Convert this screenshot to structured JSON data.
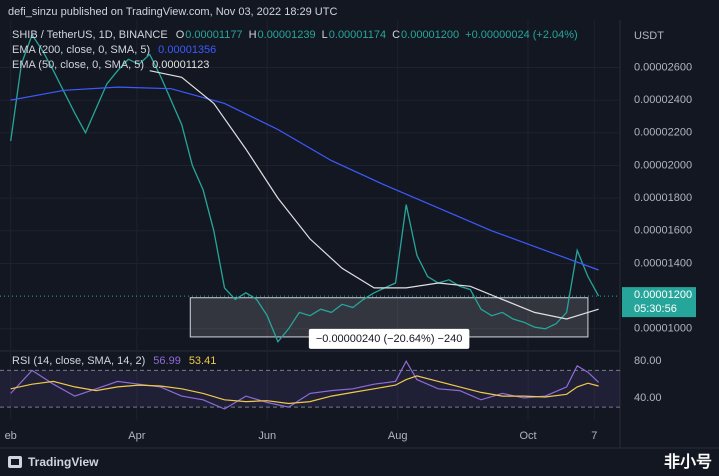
{
  "header": {
    "title": "defi_sinzu published on TradingView.com, Nov 03, 2022 18:29 UTC",
    "unit": "USDT"
  },
  "footer": {
    "brand": "TradingView",
    "watermark": "非小号"
  },
  "chart_data": [
    {
      "type": "line",
      "symbol": "SHIB / TetherUS, 1D, BINANCE",
      "ohlc": [
        {
          "label": "O",
          "value": "0.00001177"
        },
        {
          "label": "H",
          "value": "0.00001239"
        },
        {
          "label": "L",
          "value": "0.00001174"
        },
        {
          "label": "C",
          "value": "0.00001200"
        }
      ],
      "change": "+0.00000024 (+2.04%)",
      "x": [
        0,
        5,
        10,
        15,
        20,
        25,
        30,
        35,
        40,
        45,
        50,
        55,
        60,
        65,
        70,
        75,
        80,
        85,
        90,
        95,
        100,
        105,
        110,
        115,
        120,
        125,
        130,
        135,
        140,
        145,
        150,
        155,
        160,
        165,
        170,
        175,
        180,
        185,
        190,
        195,
        200,
        205,
        210,
        215,
        220,
        225,
        230,
        235,
        240,
        245,
        250,
        255,
        260,
        265,
        270,
        275
      ],
      "series": [
        {
          "name": "SHIB / TetherUS, 1D, BINANCE",
          "color": "#26a69a",
          "values": [
            2.15e-05,
            2.62e-05,
            2.8e-05,
            2.7e-05,
            2.58e-05,
            2.45e-05,
            2.32e-05,
            2.2e-05,
            2.35e-05,
            2.5e-05,
            2.58e-05,
            2.65e-05,
            2.62e-05,
            2.68e-05,
            2.55e-05,
            2.4e-05,
            2.25e-05,
            2e-05,
            1.85e-05,
            1.6e-05,
            1.25e-05,
            1.18e-05,
            1.22e-05,
            1.18e-05,
            1.08e-05,
            9.2e-06,
            1e-05,
            1.1e-05,
            1.08e-05,
            1.12e-05,
            1.1e-05,
            1.15e-05,
            1.13e-05,
            1.18e-05,
            1.22e-05,
            1.25e-05,
            1.28e-05,
            1.76e-05,
            1.45e-05,
            1.32e-05,
            1.28e-05,
            1.3e-05,
            1.26e-05,
            1.24e-05,
            1.12e-05,
            1.08e-05,
            1.1e-05,
            1.06e-05,
            1.04e-05,
            1.01e-05,
            1e-05,
            1.03e-05,
            1.1e-05,
            1.48e-05,
            1.32e-05,
            1.2e-05
          ]
        },
        {
          "name": "EMA (200, close, 0, SMA, 5)",
          "color": "#3d5afe",
          "legend_value": "0.00001356",
          "x": [
            0,
            25,
            50,
            75,
            100,
            125,
            150,
            175,
            200,
            225,
            250,
            275
          ],
          "values": [
            2.4e-05,
            2.46e-05,
            2.48e-05,
            2.47e-05,
            2.38e-05,
            2.22e-05,
            2.03e-05,
            1.88e-05,
            1.74e-05,
            1.6e-05,
            1.48e-05,
            1.36e-05
          ]
        },
        {
          "name": "EMA (50, close, 0, SMA, 5)",
          "color": "#e0e0e0",
          "legend_value": "0.00001123",
          "x": [
            65,
            80,
            95,
            110,
            125,
            140,
            155,
            170,
            185,
            200,
            215,
            230,
            245,
            260,
            275
          ],
          "values": [
            2.58e-05,
            2.54e-05,
            2.38e-05,
            2.1e-05,
            1.8e-05,
            1.55e-05,
            1.37e-05,
            1.25e-05,
            1.25e-05,
            1.28e-05,
            1.26e-05,
            1.18e-05,
            1.1e-05,
            1.06e-05,
            1.12e-05
          ]
        }
      ],
      "xlim": [
        -5,
        285
      ],
      "xticks": [
        {
          "value": 0,
          "label": "eb"
        },
        {
          "value": 59,
          "label": "Apr"
        },
        {
          "value": 120,
          "label": "Jun"
        },
        {
          "value": 181,
          "label": "Aug"
        },
        {
          "value": 242,
          "label": "Oct"
        },
        {
          "value": 273,
          "label": "7"
        }
      ],
      "ylim": [
        8.7e-06,
        2.86e-05
      ],
      "yticks": [
        {
          "value": 1e-05,
          "label": "0.00001000"
        },
        {
          "value": 1.4e-05,
          "label": "0.00001400"
        },
        {
          "value": 1.6e-05,
          "label": "0.00001600"
        },
        {
          "value": 1.8e-05,
          "label": "0.00001800"
        },
        {
          "value": 2e-05,
          "label": "0.00002000"
        },
        {
          "value": 2.2e-05,
          "label": "0.00002200"
        },
        {
          "value": 2.4e-05,
          "label": "0.00002400"
        },
        {
          "value": 2.6e-05,
          "label": "0.00002600"
        }
      ],
      "price_label": {
        "value": 1.2e-05,
        "label": "0.00001200"
      },
      "countdown": "05:30:56",
      "measure": {
        "label": "−0.00000240 (−20.64%) −240",
        "x": [
          84,
          270
        ],
        "y": [
          9.5e-06,
          1.19e-05
        ]
      },
      "grid": true
    },
    {
      "type": "line",
      "title": "RSI (14, close, SMA, 14, 2)",
      "x": [
        0,
        10,
        20,
        30,
        40,
        50,
        60,
        70,
        80,
        90,
        100,
        110,
        120,
        130,
        140,
        150,
        160,
        170,
        180,
        185,
        190,
        200,
        210,
        220,
        230,
        240,
        250,
        260,
        265,
        270,
        275
      ],
      "series": [
        {
          "name": "RSI",
          "color": "#8e6cd8",
          "legend_value": "56.99",
          "values": [
            45,
            70,
            55,
            42,
            50,
            58,
            55,
            52,
            42,
            38,
            28,
            42,
            35,
            30,
            45,
            48,
            50,
            55,
            58,
            80,
            60,
            50,
            48,
            38,
            45,
            40,
            42,
            52,
            75,
            68,
            57
          ]
        },
        {
          "name": "MA",
          "color": "#f2c94c",
          "legend_value": "53.41",
          "values": [
            50,
            55,
            58,
            52,
            48,
            52,
            54,
            53,
            50,
            45,
            38,
            36,
            37,
            34,
            36,
            42,
            46,
            50,
            54,
            60,
            64,
            58,
            52,
            46,
            42,
            42,
            41,
            44,
            52,
            56,
            53
          ]
        }
      ],
      "xlim": [
        -5,
        285
      ],
      "ylim": [
        16,
        90
      ],
      "yticks": [
        {
          "value": 80,
          "label": "80.00"
        },
        {
          "value": 40,
          "label": "40.00"
        }
      ],
      "bands": [
        30,
        70
      ]
    }
  ]
}
